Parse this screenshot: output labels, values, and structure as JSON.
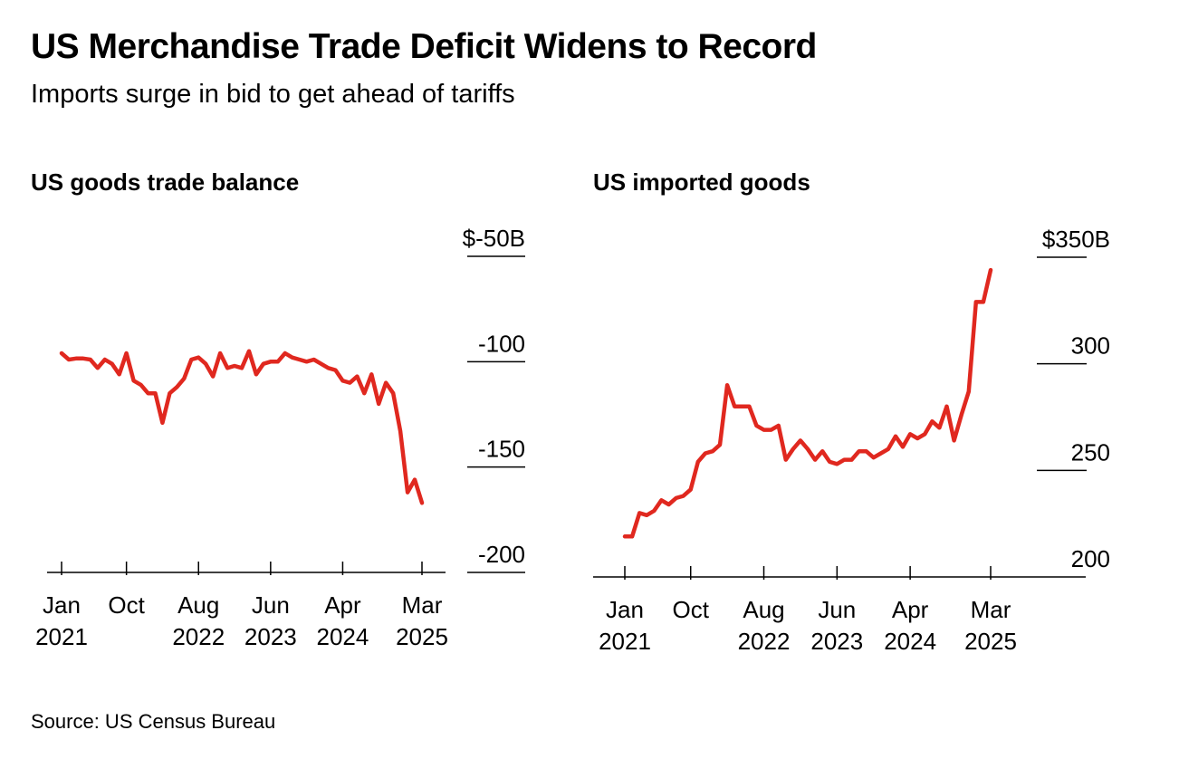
{
  "title": "US Merchandise Trade Deficit Widens to Record",
  "subtitle": "Imports surge in bid to get ahead of tariffs",
  "source": "Source: US Census Bureau",
  "colors": {
    "line": "#e0281f",
    "axis": "#000000",
    "background": "#ffffff"
  },
  "chart_data": [
    {
      "type": "line",
      "title": "US goods trade balance",
      "ylim": [
        -200,
        -50
      ],
      "y_ticks": [
        {
          "value": -50,
          "label": "$-50B"
        },
        {
          "value": -100,
          "label": "-100"
        },
        {
          "value": -150,
          "label": "-150"
        },
        {
          "value": -200,
          "label": "-200"
        }
      ],
      "x_ticks": [
        {
          "label1": "Jan",
          "label2": "2021"
        },
        {
          "label1": "Oct",
          "label2": ""
        },
        {
          "label1": "Aug",
          "label2": "2022"
        },
        {
          "label1": "Jun",
          "label2": "2023"
        },
        {
          "label1": "Apr",
          "label2": "2024"
        },
        {
          "label1": "Mar",
          "label2": "2025"
        }
      ],
      "series": [
        {
          "x": [
            "2021-01",
            "2021-02",
            "2021-03",
            "2021-04",
            "2021-05",
            "2021-06",
            "2021-07",
            "2021-08",
            "2021-09",
            "2021-10",
            "2021-11",
            "2021-12",
            "2022-01",
            "2022-02",
            "2022-03",
            "2022-04",
            "2022-05",
            "2022-06",
            "2022-07",
            "2022-08",
            "2022-09",
            "2022-10",
            "2022-11",
            "2022-12",
            "2023-01",
            "2023-02",
            "2023-03",
            "2023-04",
            "2023-05",
            "2023-06",
            "2023-07",
            "2023-08",
            "2023-09",
            "2023-10",
            "2023-11",
            "2023-12",
            "2024-01",
            "2024-02",
            "2024-03",
            "2024-04",
            "2024-05",
            "2024-06",
            "2024-07",
            "2024-08",
            "2024-09",
            "2024-10",
            "2024-11",
            "2024-12",
            "2025-01",
            "2025-02",
            "2025-03"
          ],
          "values": [
            -96,
            -99,
            -98.5,
            -98.5,
            -99,
            -103,
            -99,
            -101,
            -106,
            -96,
            -109,
            -111,
            -115,
            -115,
            -129,
            -115,
            -112,
            -108,
            -99,
            -98,
            -101,
            -107,
            -96,
            -103,
            -102,
            -103,
            -95,
            -106,
            -101,
            -100,
            -100,
            -96,
            -98,
            -99,
            -100,
            -99,
            -101,
            -103,
            -104,
            -109,
            -110,
            -107,
            -115,
            -106,
            -120,
            -110,
            -115,
            -133,
            -162,
            -156,
            -167
          ]
        }
      ]
    },
    {
      "type": "line",
      "title": "US imported goods",
      "ylim": [
        200,
        350
      ],
      "y_ticks": [
        {
          "value": 350,
          "label": "$350B"
        },
        {
          "value": 300,
          "label": "300"
        },
        {
          "value": 250,
          "label": "250"
        },
        {
          "value": 200,
          "label": "200"
        }
      ],
      "x_ticks": [
        {
          "label1": "Jan",
          "label2": "2021"
        },
        {
          "label1": "Oct",
          "label2": ""
        },
        {
          "label1": "Aug",
          "label2": "2022"
        },
        {
          "label1": "Jun",
          "label2": "2023"
        },
        {
          "label1": "Apr",
          "label2": "2024"
        },
        {
          "label1": "Mar",
          "label2": "2025"
        }
      ],
      "series": [
        {
          "x": [
            "2021-01",
            "2021-02",
            "2021-03",
            "2021-04",
            "2021-05",
            "2021-06",
            "2021-07",
            "2021-08",
            "2021-09",
            "2021-10",
            "2021-11",
            "2021-12",
            "2022-01",
            "2022-02",
            "2022-03",
            "2022-04",
            "2022-05",
            "2022-06",
            "2022-07",
            "2022-08",
            "2022-09",
            "2022-10",
            "2022-11",
            "2022-12",
            "2023-01",
            "2023-02",
            "2023-03",
            "2023-04",
            "2023-05",
            "2023-06",
            "2023-07",
            "2023-08",
            "2023-09",
            "2023-10",
            "2023-11",
            "2023-12",
            "2024-01",
            "2024-02",
            "2024-03",
            "2024-04",
            "2024-05",
            "2024-06",
            "2024-07",
            "2024-08",
            "2024-09",
            "2024-10",
            "2024-11",
            "2024-12",
            "2025-01",
            "2025-02",
            "2025-03"
          ],
          "values": [
            219,
            219,
            230,
            229,
            231,
            236,
            234,
            237,
            238,
            241,
            254,
            258,
            259,
            262,
            290,
            280,
            280,
            280,
            271,
            269,
            269,
            271,
            255,
            260,
            264,
            260,
            255,
            259,
            254,
            253,
            255,
            255,
            259,
            259,
            256,
            258,
            260,
            266,
            261,
            267,
            265,
            267,
            273,
            270,
            280,
            264,
            276,
            287,
            329,
            329,
            344
          ]
        }
      ]
    }
  ]
}
